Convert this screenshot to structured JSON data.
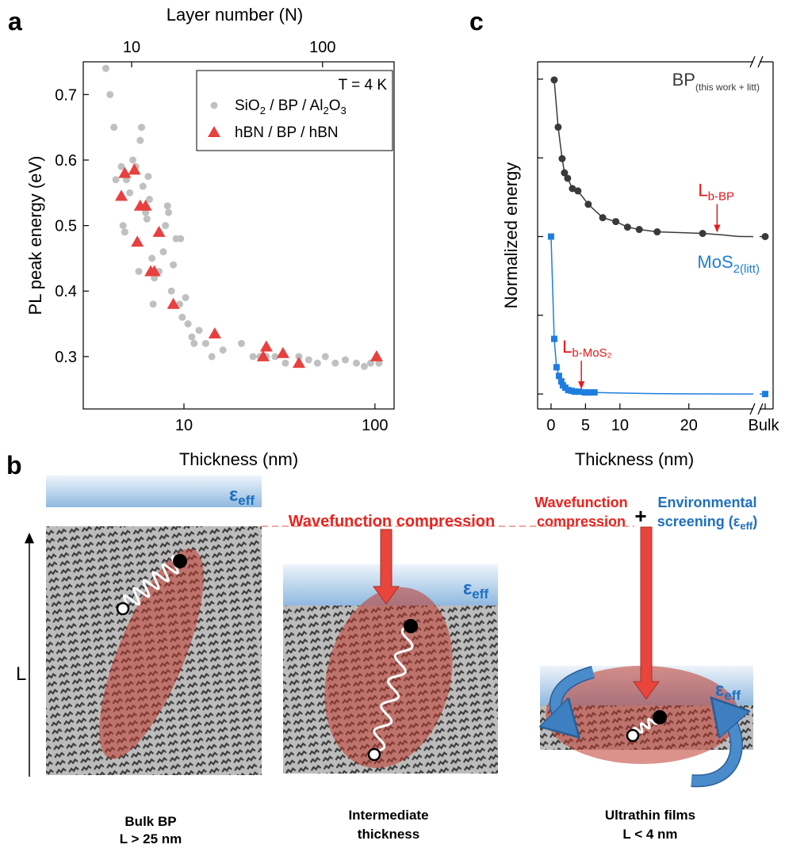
{
  "panels": [
    "a",
    "b",
    "c"
  ],
  "chart_data": [
    {
      "type": "scatter",
      "xlabel": "Thickness (nm)",
      "x2label": "Layer number (N)",
      "ylabel": "PL peak energy (eV)",
      "xlog": true,
      "xlim": [
        2.97,
        126
      ],
      "xticks": [
        10,
        100
      ],
      "x2lim": [
        5.58,
        237
      ],
      "x2ticks": [
        10,
        100
      ],
      "ylim": [
        0.22,
        0.75
      ],
      "yticks": [
        0.3,
        0.4,
        0.5,
        0.6,
        0.7
      ],
      "legend": "upper right",
      "legend_title": "T = 4 K",
      "series": [
        {
          "name": "SiO2 / BP / Al2O3",
          "color": "#c0c0c0",
          "marker": "circle",
          "x": [
            3.9,
            4.1,
            4.3,
            4.4,
            4.7,
            4.8,
            4.9,
            5.0,
            5.2,
            5.4,
            5.6,
            5.8,
            5.9,
            6.0,
            6.1,
            6.3,
            6.4,
            6.5,
            6.6,
            6.8,
            6.9,
            7.0,
            7.4,
            7.8,
            8.0,
            8.2,
            8.3,
            8.6,
            8.8,
            9.1,
            9.5,
            9.6,
            9.8,
            10.2,
            10.5,
            11.0,
            11.3,
            12.0,
            13.0,
            14.0,
            16.0,
            20.0,
            23.0,
            25.0,
            27.0,
            30.0,
            34.0,
            40.0,
            45.0,
            50.0,
            55.0,
            62.0,
            70.0,
            80.0,
            88.0,
            95.0,
            105.0
          ],
          "values": [
            0.74,
            0.7,
            0.65,
            0.57,
            0.59,
            0.5,
            0.49,
            0.57,
            0.55,
            0.6,
            0.59,
            0.43,
            0.63,
            0.65,
            0.56,
            0.52,
            0.51,
            0.575,
            0.54,
            0.45,
            0.38,
            0.42,
            0.43,
            0.46,
            0.5,
            0.53,
            0.52,
            0.4,
            0.44,
            0.48,
            0.38,
            0.48,
            0.36,
            0.39,
            0.35,
            0.33,
            0.32,
            0.34,
            0.32,
            0.3,
            0.31,
            0.32,
            0.3,
            0.3,
            0.3,
            0.3,
            0.29,
            0.3,
            0.295,
            0.29,
            0.3,
            0.29,
            0.295,
            0.29,
            0.285,
            0.29,
            0.29
          ]
        },
        {
          "name": "hBN / BP / hBN",
          "color": "#e8403f",
          "marker": "triangle",
          "x": [
            4.7,
            4.9,
            5.5,
            5.7,
            5.9,
            6.3,
            6.7,
            7.0,
            7.4,
            8.8,
            14.5,
            26,
            27,
            33,
            40,
            102
          ],
          "values": [
            0.545,
            0.58,
            0.585,
            0.475,
            0.53,
            0.53,
            0.43,
            0.43,
            0.49,
            0.38,
            0.335,
            0.3,
            0.315,
            0.305,
            0.29,
            0.3
          ]
        }
      ]
    },
    {
      "type": "line",
      "xlabel": "Thickness (nm)",
      "ylabel": "Normalized energy",
      "xlim": [
        -1.95,
        28.2
      ],
      "xticks": [
        0,
        5,
        10,
        20
      ],
      "break_label": "Bulk",
      "ylim": [
        -0.19,
        4.22
      ],
      "yticks": [
        0,
        1,
        2,
        3,
        4
      ],
      "series": [
        {
          "name": "BP",
          "name_sub": "(this work + litt)",
          "color": "#3a3a3a",
          "marker": "circle",
          "x": [
            0.46,
            1.03,
            1.61,
            1.95,
            2.41,
            3.1,
            3.9,
            5.4,
            7.5,
            9.4,
            11.1,
            12.8,
            15.4,
            22.0
          ],
          "values": [
            3.99,
            3.39,
            2.99,
            2.81,
            2.74,
            2.61,
            2.58,
            2.41,
            2.24,
            2.19,
            2.12,
            2.09,
            2.06,
            2.04
          ],
          "bulk_value": 2
        },
        {
          "name": "MoS",
          "name_sub": "2(litt)",
          "color": "#1e7ee0",
          "marker": "square",
          "x": [
            0,
            0.46,
            0.8,
            1.15,
            1.49,
            1.72,
            2.07,
            2.5,
            2.99,
            3.45,
            4.1,
            4.9,
            5.6,
            6.3
          ],
          "values": [
            2,
            0.7,
            0.34,
            0.23,
            0.16,
            0.11,
            0.08,
            0.05,
            0.04,
            0.03,
            0.03,
            0.02,
            0.02,
            0.02
          ],
          "bulk_value": 0
        }
      ],
      "annotations": [
        {
          "text": "L",
          "sub": "b-BP",
          "x": 24.1,
          "y": 2.03,
          "color": "#e8171b"
        },
        {
          "text": "L",
          "sub": "b-MoS₂",
          "x": 4.4,
          "y": 0.04,
          "color": "#e8171b"
        }
      ]
    }
  ],
  "diagram": {
    "eps": {
      "symbol": "ε",
      "sub": "eff"
    },
    "compression": "Wavefunction compression",
    "compression_lines": [
      "Wavefunction",
      "compression"
    ],
    "plus": "+",
    "screening": {
      "line1": "Environmental",
      "line2": "screening (ε",
      "line2_sub": "eff",
      "line2_end": ")"
    },
    "axis": "L",
    "captions": [
      [
        "Bulk BP",
        "L > 25 nm"
      ],
      [
        "Intermediate",
        "thickness"
      ],
      [
        "Ultrathin films",
        "L < 4 nm"
      ]
    ]
  }
}
